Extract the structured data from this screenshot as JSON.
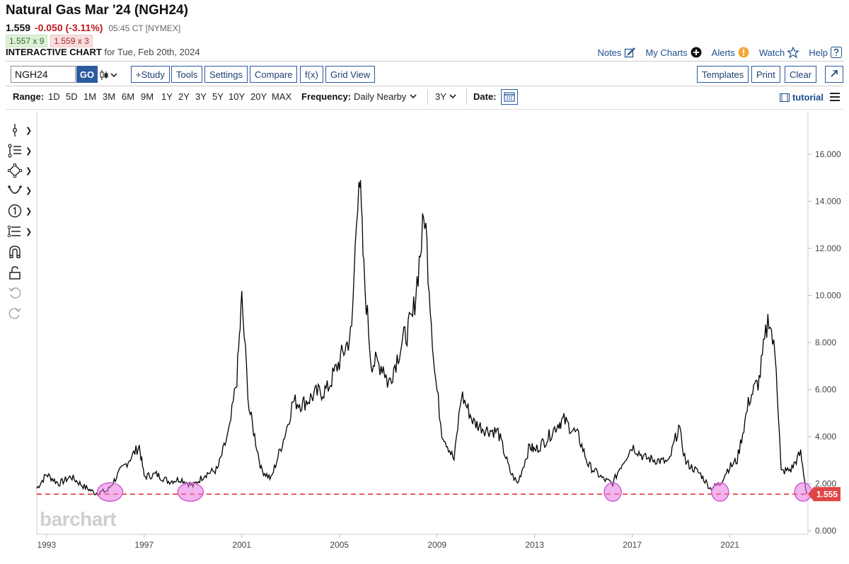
{
  "header": {
    "title": "Natural Gas Mar '24 (NGH24)",
    "last": "1.559",
    "change": "-0.050 (-3.11%)",
    "time": "05:45 CT [NYMEX]",
    "bid": "1.557 x 9",
    "ask": "1.559 x 3",
    "chart_label": "INTERACTIVE CHART",
    "chart_for": "for Tue, Feb 20th, 2024"
  },
  "toplinks": {
    "notes": "Notes",
    "mycharts": "My Charts",
    "alerts": "Alerts",
    "watch": "Watch",
    "help": "Help"
  },
  "toolbar": {
    "symbol": "NGH24",
    "go": "GO",
    "study": "+Study",
    "tools": "Tools",
    "settings": "Settings",
    "compare": "Compare",
    "fx": "f(x)",
    "gridview": "Grid View",
    "templates": "Templates",
    "print": "Print",
    "clear": "Clear"
  },
  "rangebar": {
    "range_label": "Range:",
    "ranges": [
      "1D",
      "5D",
      "1M",
      "3M",
      "6M",
      "9M",
      "1Y",
      "2Y",
      "3Y",
      "5Y",
      "10Y",
      "20Y",
      "MAX"
    ],
    "frequency_label": "Frequency:",
    "frequency": "Daily Nearby",
    "period": "3Y",
    "date_label": "Date:",
    "tutorial": "tutorial"
  },
  "brand": "barchart",
  "colors": {
    "accent": "#2c5aa0",
    "line": "#000000",
    "support": "#e03030",
    "highlight": "#e070d8",
    "price_tag": "#e04545"
  },
  "chart_data": {
    "type": "line",
    "x_ticks": [
      "1993",
      "1997",
      "2001",
      "2005",
      "2009",
      "2013",
      "2017",
      "2021"
    ],
    "y_ticks": [
      "0.000",
      "2.000",
      "4.000",
      "6.000",
      "8.000",
      "10.000",
      "12.000",
      "14.000",
      "16.000"
    ],
    "ylim": [
      0,
      17.5
    ],
    "xlim": [
      1992.6,
      2024.2
    ],
    "current_price_label": "1.555",
    "support_level": 1.555,
    "series": [
      {
        "x": [
          1992.6,
          1993.0,
          1993.5,
          1994.0,
          1994.5,
          1995.0,
          1995.5,
          1996.0,
          1996.3,
          1996.8,
          1997.0,
          1997.5,
          1998.0,
          1998.5,
          1999.0,
          1999.5,
          2000.0,
          2000.5,
          2000.8,
          2001.0,
          2001.3,
          2001.8,
          2002.2,
          2002.8,
          2003.1,
          2003.5,
          2004.0,
          2004.5,
          2005.0,
          2005.5,
          2005.8,
          2006.0,
          2006.3,
          2006.8,
          2007.0,
          2007.5,
          2008.0,
          2008.5,
          2008.9,
          2009.2,
          2009.7,
          2010.0,
          2010.5,
          2011.0,
          2011.5,
          2012.0,
          2012.3,
          2012.8,
          2013.0,
          2013.5,
          2014.0,
          2014.2,
          2014.8,
          2015.2,
          2015.8,
          2016.2,
          2016.5,
          2017.0,
          2017.5,
          2018.0,
          2018.5,
          2018.9,
          2019.2,
          2019.8,
          2020.2,
          2020.6,
          2020.9,
          2021.3,
          2021.8,
          2022.2,
          2022.6,
          2022.9,
          2023.1,
          2023.5,
          2023.9,
          2024.15
        ],
        "y": [
          1.8,
          2.4,
          2.0,
          2.3,
          1.9,
          1.6,
          1.7,
          2.5,
          2.9,
          3.6,
          2.3,
          2.4,
          2.1,
          2.2,
          1.9,
          2.4,
          2.6,
          4.3,
          6.5,
          9.8,
          5.2,
          2.6,
          2.2,
          4.2,
          5.5,
          5.4,
          5.8,
          6.0,
          7.2,
          8.4,
          15.6,
          11.0,
          7.2,
          7.0,
          6.2,
          7.8,
          9.0,
          13.5,
          6.8,
          4.2,
          3.0,
          5.8,
          4.6,
          4.3,
          4.2,
          2.5,
          2.0,
          3.6,
          3.4,
          3.9,
          4.6,
          4.7,
          4.0,
          2.8,
          2.2,
          2.0,
          2.7,
          3.6,
          3.1,
          3.0,
          2.9,
          4.4,
          2.9,
          2.4,
          1.8,
          2.0,
          2.6,
          3.0,
          5.6,
          6.4,
          9.2,
          7.0,
          2.5,
          2.6,
          3.3,
          1.56
        ]
      }
    ],
    "highlighted_lows": [
      1995.6,
      1998.9,
      2016.2,
      2020.6,
      2024.0
    ]
  }
}
